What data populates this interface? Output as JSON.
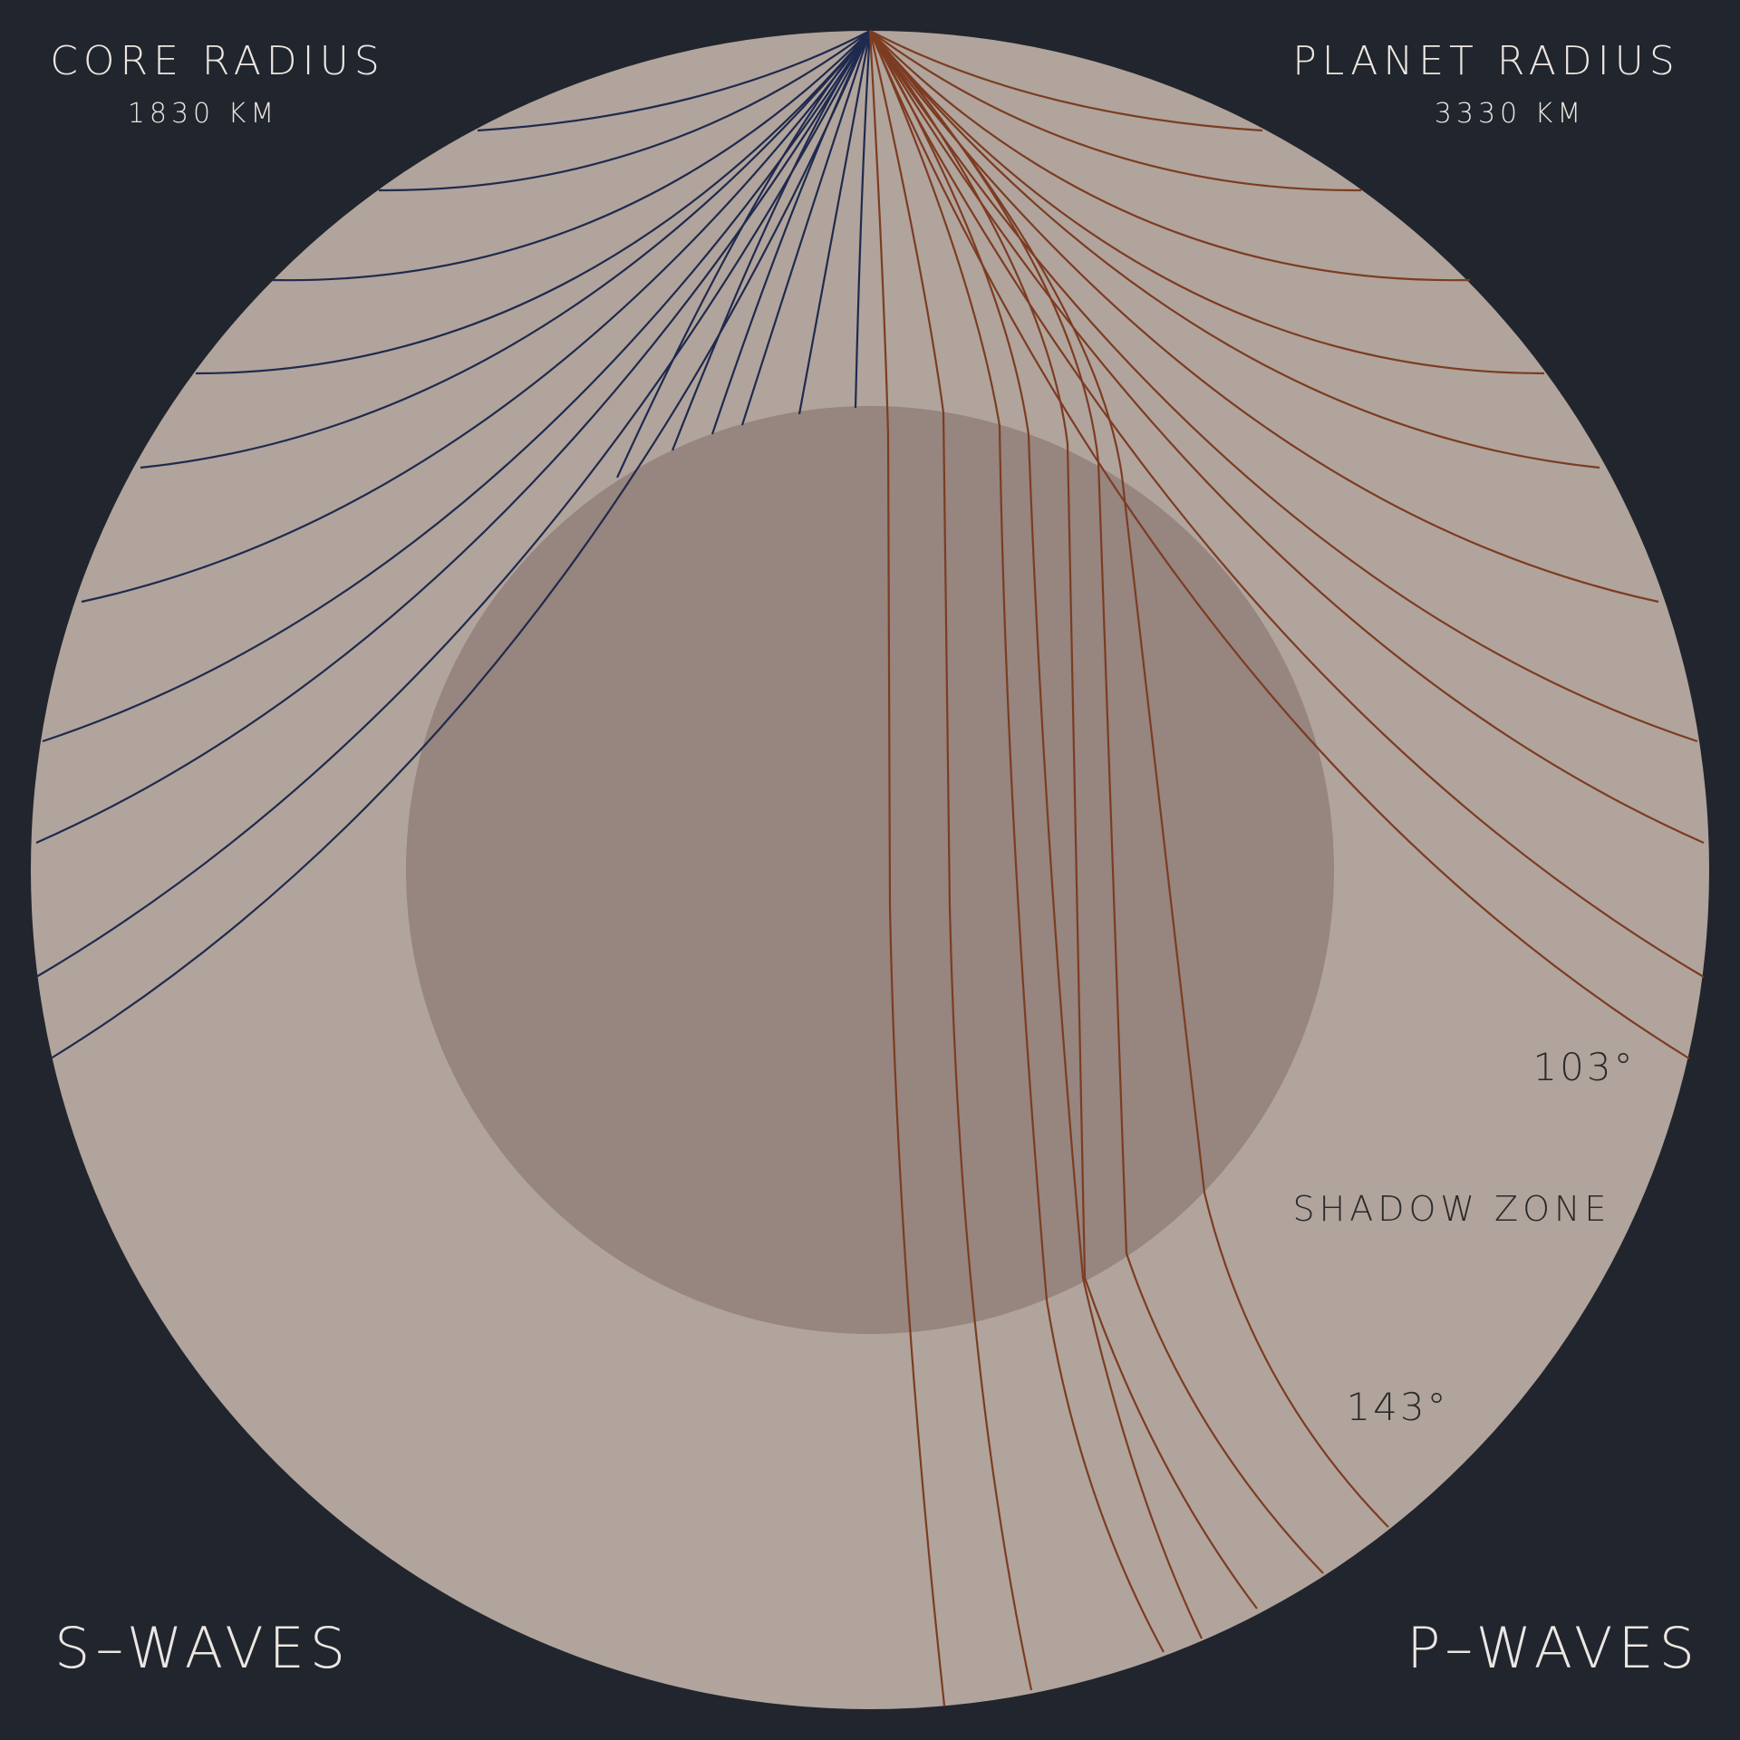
{
  "colors": {
    "background": "#21252d",
    "mantle": "#b1a49c",
    "core": "#97857f",
    "s_wave": "#1f2a4e",
    "p_wave": "#7c3c22"
  },
  "labels": {
    "core_radius_title": "CORE RADIUS",
    "core_radius_value": "1830 KM",
    "planet_radius_title": "PLANET RADIUS",
    "planet_radius_value": "3330 KM",
    "angle_103": "103°",
    "shadow_zone": "SHADOW ZONE",
    "angle_143": "143°",
    "s_waves": "S–WAVES",
    "p_waves": "P–WAVES"
  }
}
